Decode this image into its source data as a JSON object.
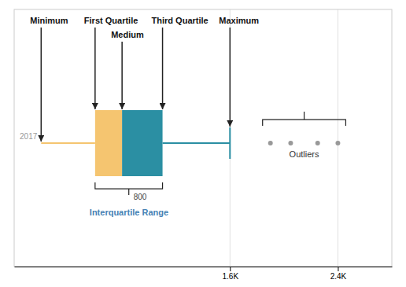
{
  "chart_data": {
    "type": "box",
    "orientation": "horizontal",
    "min": 200,
    "q1": 600,
    "median": 800,
    "q3": 1100,
    "max": 1600,
    "outliers": [
      1900,
      2050,
      2250,
      2400
    ],
    "colors": [
      "#F5C570",
      "#2B8FA3"
    ],
    "xlim": [
      0,
      2800
    ],
    "xticks": [
      {
        "value": 1600,
        "label": "1.6K"
      },
      {
        "value": 2400,
        "label": "2.4K"
      }
    ],
    "grid": true,
    "annotations": [
      {
        "text": "Minimum",
        "x": 200
      },
      {
        "text": "First Quartile",
        "x": 600
      },
      {
        "text": "Medium",
        "x": 800
      },
      {
        "text": "Third Quartile",
        "x": 1100
      },
      {
        "text": "Maximum",
        "x": 1600
      }
    ],
    "labels": [
      {
        "text": "2017",
        "x": 200
      }
    ],
    "iqr": {
      "x": [
        600,
        1100
      ],
      "label": "Interquartile Range",
      "value_label": "800"
    },
    "outliers_label": "Outliers"
  }
}
